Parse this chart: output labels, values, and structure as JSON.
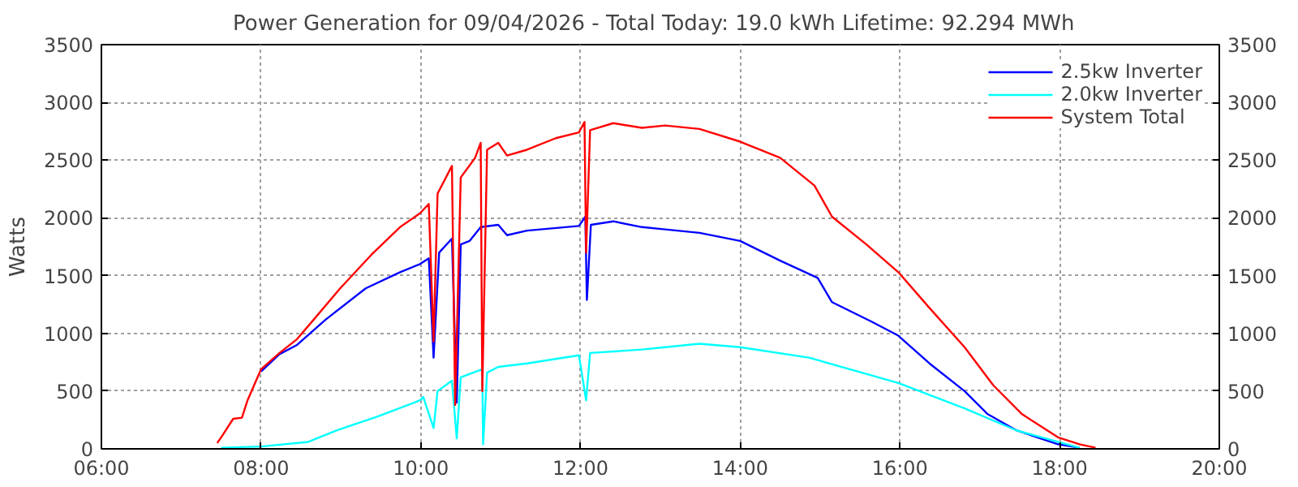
{
  "chart_data": {
    "type": "line",
    "title": "Power Generation for 09/04/2026 - Total Today: 19.0 kWh   Lifetime: 92.294 MWh",
    "ylabel": "Watts",
    "xlim": [
      6,
      20
    ],
    "xticks": [
      {
        "value": 6,
        "label": "06:00"
      },
      {
        "value": 8,
        "label": "08:00"
      },
      {
        "value": 10,
        "label": "10:00"
      },
      {
        "value": 12,
        "label": "12:00"
      },
      {
        "value": 14,
        "label": "14:00"
      },
      {
        "value": 16,
        "label": "16:00"
      },
      {
        "value": 18,
        "label": "18:00"
      },
      {
        "value": 20,
        "label": "20:00"
      }
    ],
    "ylim": [
      0,
      3500
    ],
    "yticks": [
      0,
      500,
      1000,
      1500,
      2000,
      2500,
      3000,
      3500
    ],
    "y2lim": [
      0,
      3500
    ],
    "y2ticks": [
      0,
      500,
      1000,
      1500,
      2000,
      2500,
      3000,
      3500
    ],
    "grid": true,
    "legend": "top right",
    "line_style": "solid",
    "marker": "none",
    "series": [
      {
        "name": "2.5kw Inverter",
        "color": "#0000ff",
        "x": [
          8.0,
          8.23,
          8.45,
          8.81,
          9.31,
          9.74,
          9.99,
          10.1,
          10.16,
          10.23,
          10.39,
          10.45,
          10.5,
          10.61,
          10.75,
          10.97,
          11.08,
          11.33,
          11.98,
          12.06,
          12.08,
          12.13,
          12.41,
          12.77,
          13.06,
          13.49,
          14.0,
          14.5,
          14.97,
          15.15,
          15.65,
          15.98,
          16.37,
          16.81,
          17.1,
          17.46,
          17.98,
          18.25
        ],
        "values": [
          670,
          820,
          900,
          1120,
          1390,
          1530,
          1600,
          1650,
          790,
          1700,
          1820,
          400,
          1770,
          1800,
          1920,
          1940,
          1850,
          1890,
          1930,
          2010,
          1290,
          1940,
          1970,
          1920,
          1900,
          1870,
          1800,
          1630,
          1480,
          1270,
          1100,
          980,
          740,
          500,
          300,
          160,
          40,
          10
        ]
      },
      {
        "name": "2.0kw Inverter",
        "color": "#00ffff",
        "x": [
          7.5,
          8.0,
          8.59,
          8.95,
          9.46,
          9.99,
          10.03,
          10.16,
          10.21,
          10.39,
          10.45,
          10.5,
          10.77,
          10.78,
          10.83,
          10.97,
          11.33,
          11.98,
          12.07,
          12.12,
          12.77,
          13.06,
          13.49,
          14.0,
          14.86,
          15.98,
          16.81,
          17.46,
          17.98,
          18.25
        ],
        "values": [
          10,
          20,
          60,
          160,
          280,
          420,
          450,
          180,
          500,
          590,
          90,
          620,
          690,
          40,
          660,
          710,
          740,
          810,
          420,
          830,
          860,
          880,
          910,
          880,
          790,
          570,
          350,
          160,
          60,
          10
        ]
      },
      {
        "name": "System Total",
        "color": "#ff0000",
        "x": [
          7.45,
          7.51,
          7.65,
          7.76,
          7.83,
          8.0,
          8.23,
          8.45,
          8.66,
          8.99,
          9.38,
          9.74,
          9.99,
          10.1,
          10.16,
          10.21,
          10.39,
          10.43,
          10.5,
          10.68,
          10.75,
          10.77,
          10.83,
          10.97,
          11.08,
          11.33,
          11.69,
          11.98,
          12.05,
          12.07,
          12.12,
          12.41,
          12.77,
          13.06,
          13.49,
          14.0,
          14.5,
          14.93,
          15.15,
          15.58,
          15.98,
          16.37,
          16.81,
          17.17,
          17.53,
          17.98,
          18.25,
          18.45
        ],
        "values": [
          50,
          110,
          260,
          270,
          420,
          690,
          830,
          950,
          1120,
          1390,
          1680,
          1920,
          2040,
          2120,
          930,
          2210,
          2450,
          380,
          2350,
          2520,
          2650,
          500,
          2590,
          2650,
          2540,
          2590,
          2690,
          2740,
          2830,
          1700,
          2760,
          2820,
          2780,
          2800,
          2770,
          2660,
          2520,
          2280,
          2010,
          1770,
          1530,
          1220,
          880,
          550,
          300,
          100,
          40,
          10
        ]
      }
    ]
  }
}
